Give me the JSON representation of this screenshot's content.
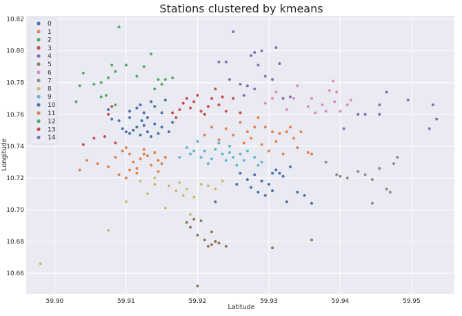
{
  "chart_data": {
    "type": "scatter",
    "title": "Stations clustered by kmeans",
    "xlabel": "Latitude",
    "ylabel": "Longitude",
    "xlim": [
      59.896,
      59.956
    ],
    "ylim": [
      10.647,
      10.822
    ],
    "xticks": [
      "59.90",
      "59.91",
      "59.92",
      "59.93",
      "59.94",
      "59.95"
    ],
    "yticks": [
      "10.66",
      "10.68",
      "10.70",
      "10.72",
      "10.74",
      "10.76",
      "10.78",
      "10.80",
      "10.82"
    ],
    "grid": true,
    "legend": "top-left",
    "palette": [
      "#4c72b0",
      "#dd8452",
      "#55a868",
      "#c44e52",
      "#8172b3",
      "#937860",
      "#da8bc3",
      "#8c8c8c",
      "#ccb974",
      "#64b5cd",
      "#4c72b0",
      "#dd8452",
      "#55a868",
      "#c44e52",
      "#8172b3"
    ],
    "series": [
      {
        "name": "0",
        "points": [
          [
            59.9105,
            10.762
          ],
          [
            59.9115,
            10.764
          ],
          [
            59.912,
            10.766
          ],
          [
            59.9125,
            10.761
          ],
          [
            59.913,
            10.758
          ],
          [
            59.914,
            10.765
          ],
          [
            59.915,
            10.761
          ],
          [
            59.9155,
            10.769
          ],
          [
            59.909,
            10.756
          ],
          [
            59.9095,
            10.751
          ],
          [
            59.91,
            10.749
          ],
          [
            59.9105,
            10.748
          ],
          [
            59.911,
            10.75
          ],
          [
            59.9115,
            10.752
          ],
          [
            59.912,
            10.747
          ],
          [
            59.9125,
            10.753
          ],
          [
            59.913,
            10.749
          ],
          [
            59.9135,
            10.746
          ],
          [
            59.914,
            10.754
          ],
          [
            59.9145,
            10.748
          ],
          [
            59.915,
            10.752
          ],
          [
            59.916,
            10.749
          ],
          [
            59.9165,
            10.755
          ],
          [
            59.908,
            10.757
          ],
          [
            59.9075,
            10.763
          ],
          [
            59.9135,
            10.768
          ],
          [
            59.9122,
            10.756
          ],
          [
            59.9105,
            10.758
          ]
        ]
      },
      {
        "name": "1",
        "points": [
          [
            59.9035,
            10.725
          ],
          [
            59.9045,
            10.731
          ],
          [
            59.906,
            10.729
          ],
          [
            59.9075,
            10.727
          ],
          [
            59.9085,
            10.733
          ],
          [
            59.9095,
            10.737
          ],
          [
            59.91,
            10.739
          ],
          [
            59.9105,
            10.735
          ],
          [
            59.911,
            10.73
          ],
          [
            59.9115,
            10.726
          ],
          [
            59.912,
            10.732
          ],
          [
            59.9125,
            10.738
          ],
          [
            59.913,
            10.734
          ],
          [
            59.9135,
            10.728
          ],
          [
            59.914,
            10.736
          ],
          [
            59.9145,
            10.724
          ],
          [
            59.915,
            10.729
          ],
          [
            59.9155,
            10.733
          ],
          [
            59.909,
            10.722
          ],
          [
            59.91,
            10.72
          ],
          [
            59.9115,
            10.723
          ],
          [
            59.9125,
            10.735
          ],
          [
            59.9105,
            10.725
          ],
          [
            59.9145,
            10.731
          ]
        ]
      },
      {
        "name": "2",
        "points": [
          [
            59.903,
            10.768
          ],
          [
            59.9035,
            10.778
          ],
          [
            59.904,
            10.786
          ],
          [
            59.9055,
            10.779
          ],
          [
            59.9065,
            10.78
          ],
          [
            59.9075,
            10.783
          ],
          [
            59.908,
            10.791
          ],
          [
            59.9085,
            10.787
          ],
          [
            59.909,
            10.815
          ],
          [
            59.91,
            10.791
          ],
          [
            59.9115,
            10.784
          ],
          [
            59.9125,
            10.79
          ],
          [
            59.9135,
            10.798
          ],
          [
            59.914,
            10.776
          ],
          [
            59.9145,
            10.782
          ],
          [
            59.915,
            10.779
          ],
          [
            59.9155,
            10.782
          ],
          [
            59.9165,
            10.783
          ],
          [
            59.9085,
            10.766
          ],
          [
            59.9065,
            10.771
          ],
          [
            59.9072,
            10.772
          ]
        ]
      },
      {
        "name": "3",
        "points": [
          [
            59.904,
            10.741
          ],
          [
            59.9055,
            10.745
          ],
          [
            59.907,
            10.746
          ],
          [
            59.9075,
            10.76
          ],
          [
            59.908,
            10.765
          ],
          [
            59.9085,
            10.742
          ],
          [
            59.9165,
            10.761
          ],
          [
            59.917,
            10.758
          ],
          [
            59.9175,
            10.763
          ],
          [
            59.918,
            10.767
          ],
          [
            59.9185,
            10.77
          ],
          [
            59.919,
            10.764
          ],
          [
            59.9195,
            10.768
          ],
          [
            59.92,
            10.772
          ],
          [
            59.9205,
            10.762
          ],
          [
            59.921,
            10.76
          ],
          [
            59.9215,
            10.765
          ],
          [
            59.922,
            10.77
          ],
          [
            59.9225,
            10.776
          ],
          [
            59.923,
            10.766
          ],
          [
            59.9235,
            10.771
          ],
          [
            59.924,
            10.762
          ],
          [
            59.925,
            10.77
          ],
          [
            59.926,
            10.761
          ]
        ]
      },
      {
        "name": "4",
        "points": [
          [
            59.923,
            10.793
          ],
          [
            59.924,
            10.793
          ],
          [
            59.925,
            10.812
          ],
          [
            59.9245,
            10.782
          ],
          [
            59.926,
            10.779
          ],
          [
            59.9265,
            10.772
          ],
          [
            59.927,
            10.778
          ],
          [
            59.9275,
            10.797
          ],
          [
            59.928,
            10.799
          ],
          [
            59.9285,
            10.791
          ],
          [
            59.929,
            10.8
          ],
          [
            59.9295,
            10.784
          ],
          [
            59.9305,
            10.782
          ],
          [
            59.931,
            10.802
          ],
          [
            59.9315,
            10.792
          ],
          [
            59.932,
            10.77
          ],
          [
            59.933,
            10.771
          ],
          [
            59.928,
            10.776
          ]
        ]
      },
      {
        "name": "5",
        "points": [
          [
            59.9185,
            10.692
          ],
          [
            59.919,
            10.689
          ],
          [
            59.9195,
            10.694
          ],
          [
            59.92,
            10.684
          ],
          [
            59.9205,
            10.693
          ],
          [
            59.921,
            10.681
          ],
          [
            59.9215,
            10.677
          ],
          [
            59.922,
            10.686
          ],
          [
            59.9225,
            10.68
          ],
          [
            59.923,
            10.679
          ],
          [
            59.924,
            10.677
          ],
          [
            59.92,
            10.652
          ],
          [
            59.9305,
            10.676
          ],
          [
            59.936,
            10.681
          ],
          [
            59.922,
            10.678
          ]
        ]
      },
      {
        "name": "6",
        "points": [
          [
            59.9295,
            10.767
          ],
          [
            59.9305,
            10.77
          ],
          [
            59.931,
            10.774
          ],
          [
            59.9325,
            10.763
          ],
          [
            59.9335,
            10.77
          ],
          [
            59.934,
            10.778
          ],
          [
            59.9355,
            10.765
          ],
          [
            59.936,
            10.77
          ],
          [
            59.9365,
            10.761
          ],
          [
            59.9375,
            10.766
          ],
          [
            59.938,
            10.762
          ],
          [
            59.9385,
            10.775
          ],
          [
            59.939,
            10.781
          ],
          [
            59.9392,
            10.768
          ],
          [
            59.94,
            10.762
          ],
          [
            59.941,
            10.766
          ],
          [
            59.9415,
            10.769
          ],
          [
            59.9395,
            10.774
          ]
        ]
      },
      {
        "name": "7",
        "points": [
          [
            59.938,
            10.73
          ],
          [
            59.9395,
            10.722
          ],
          [
            59.941,
            10.72
          ],
          [
            59.9425,
            10.724
          ],
          [
            59.9435,
            10.722
          ],
          [
            59.9445,
            10.719
          ],
          [
            59.9455,
            10.726
          ],
          [
            59.9465,
            10.713
          ],
          [
            59.947,
            10.711
          ],
          [
            59.948,
            10.733
          ],
          [
            59.9475,
            10.729
          ],
          [
            59.9445,
            10.704
          ],
          [
            59.94,
            10.721
          ]
        ]
      },
      {
        "name": "8",
        "points": [
          [
            59.898,
            10.666
          ],
          [
            59.9075,
            10.687
          ],
          [
            59.91,
            10.705
          ],
          [
            59.913,
            10.71
          ],
          [
            59.914,
            10.716
          ],
          [
            59.9155,
            10.701
          ],
          [
            59.916,
            10.715
          ],
          [
            59.917,
            10.712
          ],
          [
            59.9175,
            10.717
          ],
          [
            59.918,
            10.709
          ],
          [
            59.9185,
            10.713
          ],
          [
            59.919,
            10.697
          ],
          [
            59.9195,
            10.708
          ],
          [
            59.9205,
            10.716
          ],
          [
            59.9215,
            10.715
          ],
          [
            59.9225,
            10.713
          ],
          [
            59.9235,
            10.718
          ],
          [
            59.912,
            10.718
          ],
          [
            59.914,
            10.72
          ]
        ]
      },
      {
        "name": "9",
        "points": [
          [
            59.9175,
            10.733
          ],
          [
            59.9185,
            10.739
          ],
          [
            59.919,
            10.735
          ],
          [
            59.9195,
            10.737
          ],
          [
            59.92,
            10.743
          ],
          [
            59.9205,
            10.733
          ],
          [
            59.921,
            10.737
          ],
          [
            59.9215,
            10.729
          ],
          [
            59.922,
            10.732
          ],
          [
            59.9225,
            10.738
          ],
          [
            59.923,
            10.742
          ],
          [
            59.9235,
            10.735
          ],
          [
            59.924,
            10.731
          ],
          [
            59.9245,
            10.74
          ],
          [
            59.925,
            10.733
          ],
          [
            59.9255,
            10.728
          ],
          [
            59.926,
            10.735
          ],
          [
            59.9265,
            10.731
          ],
          [
            59.927,
            10.737
          ],
          [
            59.928,
            10.733
          ],
          [
            59.9285,
            10.728
          ],
          [
            59.929,
            10.73
          ],
          [
            59.9245,
            10.736
          ]
        ]
      },
      {
        "name": "10",
        "points": [
          [
            59.9225,
            10.705
          ],
          [
            59.9255,
            10.716
          ],
          [
            59.926,
            10.723
          ],
          [
            59.927,
            10.719
          ],
          [
            59.9275,
            10.714
          ],
          [
            59.928,
            10.722
          ],
          [
            59.9285,
            10.711
          ],
          [
            59.929,
            10.718
          ],
          [
            59.9295,
            10.709
          ],
          [
            59.93,
            10.716
          ],
          [
            59.9305,
            10.712
          ],
          [
            59.931,
            10.725
          ],
          [
            59.9315,
            10.723
          ],
          [
            59.932,
            10.721
          ],
          [
            59.9325,
            10.705
          ],
          [
            59.933,
            10.727
          ],
          [
            59.934,
            10.711
          ],
          [
            59.935,
            10.709
          ],
          [
            59.936,
            10.704
          ],
          [
            59.9305,
            10.723
          ]
        ]
      },
      {
        "name": "11",
        "points": [
          [
            59.921,
            10.747
          ],
          [
            59.922,
            10.752
          ],
          [
            59.923,
            10.744
          ],
          [
            59.924,
            10.751
          ],
          [
            59.925,
            10.747
          ],
          [
            59.926,
            10.755
          ],
          [
            59.9265,
            10.742
          ],
          [
            59.927,
            10.749
          ],
          [
            59.9275,
            10.745
          ],
          [
            59.928,
            10.752
          ],
          [
            59.9285,
            10.758
          ],
          [
            59.929,
            10.741
          ],
          [
            59.9295,
            10.752
          ],
          [
            59.93,
            10.737
          ],
          [
            59.9305,
            10.749
          ],
          [
            59.931,
            10.743
          ],
          [
            59.9315,
            10.748
          ],
          [
            59.932,
            10.735
          ],
          [
            59.9325,
            10.749
          ],
          [
            59.933,
            10.752
          ],
          [
            59.9335,
            10.745
          ],
          [
            59.934,
            10.739
          ],
          [
            59.9355,
            10.736
          ],
          [
            59.936,
            10.735
          ],
          [
            59.9345,
            10.749
          ]
        ]
      },
      {
        "name": "12",
        "points": []
      },
      {
        "name": "13",
        "points": []
      },
      {
        "name": "14",
        "points": [
          [
            59.9405,
            10.751
          ],
          [
            59.9425,
            10.76
          ],
          [
            59.9435,
            10.76
          ],
          [
            59.9455,
            10.766
          ],
          [
            59.9465,
            10.774
          ],
          [
            59.9495,
            10.769
          ],
          [
            59.9525,
            10.751
          ],
          [
            59.953,
            10.766
          ],
          [
            59.9535,
            10.757
          ],
          [
            59.9455,
            10.76
          ]
        ]
      }
    ]
  }
}
